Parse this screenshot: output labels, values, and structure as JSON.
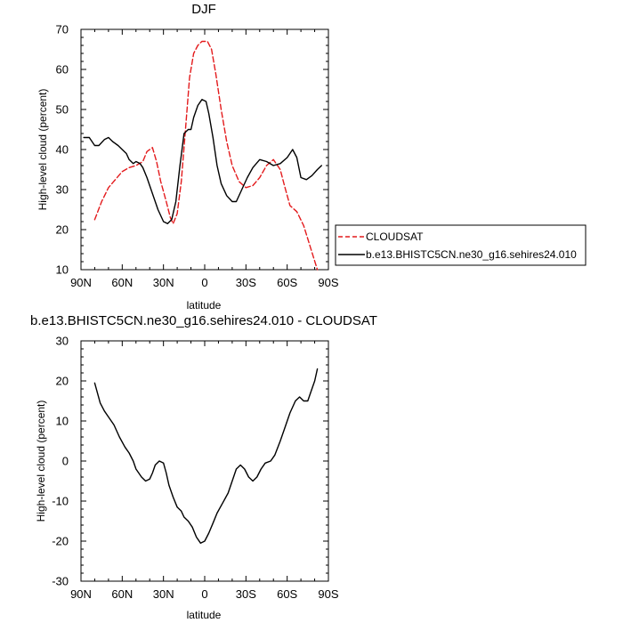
{
  "chart_data": [
    {
      "type": "line",
      "title": "DJF",
      "xlabel": "latitude",
      "ylabel": "High-level cloud (percent)",
      "xlim": [
        90,
        -90
      ],
      "ylim": [
        10,
        70
      ],
      "x_ticks": [
        90,
        60,
        30,
        0,
        -30,
        -60,
        -90
      ],
      "x_tick_labels": [
        "90N",
        "60N",
        "30N",
        "0",
        "30S",
        "60S",
        "90S"
      ],
      "y_ticks": [
        10,
        20,
        30,
        40,
        50,
        60,
        70
      ],
      "y_tick_labels": [
        "10",
        "20",
        "30",
        "40",
        "50",
        "60",
        "70"
      ],
      "legend_position": "right",
      "series": [
        {
          "name": "CLOUDSAT",
          "color": "#e31a1c",
          "dash": "dashed",
          "points": [
            [
              80,
              22.5
            ],
            [
              75,
              27
            ],
            [
              70,
              30.5
            ],
            [
              65,
              32.5
            ],
            [
              60,
              34.5
            ],
            [
              55,
              35.5
            ],
            [
              50,
              36
            ],
            [
              45,
              37
            ],
            [
              42,
              39.5
            ],
            [
              38,
              40.5
            ],
            [
              35,
              37
            ],
            [
              32,
              32
            ],
            [
              28,
              27
            ],
            [
              25,
              23
            ],
            [
              23,
              21.5
            ],
            [
              20,
              24
            ],
            [
              17,
              32
            ],
            [
              14,
              45
            ],
            [
              11,
              58
            ],
            [
              8,
              64
            ],
            [
              5,
              66
            ],
            [
              2,
              67
            ],
            [
              -2,
              67
            ],
            [
              -5,
              65
            ],
            [
              -8,
              59
            ],
            [
              -12,
              50
            ],
            [
              -16,
              42
            ],
            [
              -20,
              36
            ],
            [
              -25,
              32
            ],
            [
              -30,
              30.5
            ],
            [
              -35,
              31
            ],
            [
              -40,
              33
            ],
            [
              -45,
              36
            ],
            [
              -50,
              37.5
            ],
            [
              -55,
              35
            ],
            [
              -58,
              31
            ],
            [
              -62,
              26
            ],
            [
              -67,
              24.5
            ],
            [
              -72,
              21
            ],
            [
              -77,
              15.5
            ],
            [
              -82,
              10
            ]
          ]
        },
        {
          "name": "b.e13.BHISTC5CN.ne30_g16.sehires24.010",
          "color": "#000000",
          "dash": "solid",
          "points": [
            [
              88,
              43
            ],
            [
              84,
              43
            ],
            [
              80,
              41
            ],
            [
              77,
              41
            ],
            [
              73,
              42.5
            ],
            [
              70,
              43
            ],
            [
              67,
              42
            ],
            [
              63,
              41
            ],
            [
              60,
              40
            ],
            [
              57,
              39
            ],
            [
              55,
              37.5
            ],
            [
              52,
              36.5
            ],
            [
              50,
              37
            ],
            [
              47,
              36.5
            ],
            [
              45,
              35.5
            ],
            [
              42,
              33
            ],
            [
              38,
              29
            ],
            [
              34,
              25
            ],
            [
              30,
              22
            ],
            [
              27,
              21.5
            ],
            [
              24,
              22.5
            ],
            [
              21,
              27
            ],
            [
              18,
              36
            ],
            [
              15,
              44
            ],
            [
              12,
              45
            ],
            [
              10,
              45
            ],
            [
              8,
              48
            ],
            [
              5,
              51
            ],
            [
              2,
              52.5
            ],
            [
              -1,
              52
            ],
            [
              -3,
              49
            ],
            [
              -6,
              43
            ],
            [
              -9,
              36
            ],
            [
              -12,
              31.5
            ],
            [
              -16,
              28.5
            ],
            [
              -20,
              27
            ],
            [
              -23,
              27
            ],
            [
              -27,
              30
            ],
            [
              -31,
              33
            ],
            [
              -35,
              35.5
            ],
            [
              -40,
              37.5
            ],
            [
              -45,
              37
            ],
            [
              -50,
              36
            ],
            [
              -55,
              36.5
            ],
            [
              -60,
              38
            ],
            [
              -64,
              40
            ],
            [
              -67,
              38
            ],
            [
              -70,
              33
            ],
            [
              -74,
              32.5
            ],
            [
              -78,
              33.5
            ],
            [
              -82,
              35
            ],
            [
              -85,
              36
            ]
          ]
        }
      ]
    },
    {
      "type": "line",
      "title": "b.e13.BHISTC5CN.ne30_g16.sehires24.010 - CLOUDSAT",
      "xlabel": "latitude",
      "ylabel": "High-level cloud (percent)",
      "xlim": [
        90,
        -90
      ],
      "ylim": [
        -30,
        30
      ],
      "x_ticks": [
        90,
        60,
        30,
        0,
        -30,
        -60,
        -90
      ],
      "x_tick_labels": [
        "90N",
        "60N",
        "30N",
        "0",
        "30S",
        "60S",
        "90S"
      ],
      "y_ticks": [
        -30,
        -20,
        -10,
        0,
        10,
        20,
        30
      ],
      "y_tick_labels": [
        "-30",
        "-20",
        "-10",
        "0",
        "10",
        "20",
        "30"
      ],
      "series": [
        {
          "color": "#000000",
          "dash": "solid",
          "points": [
            [
              80,
              19.5
            ],
            [
              76,
              14.5
            ],
            [
              73,
              12.5
            ],
            [
              70,
              11
            ],
            [
              66,
              9
            ],
            [
              62,
              6
            ],
            [
              58,
              3.5
            ],
            [
              55,
              2
            ],
            [
              52,
              0
            ],
            [
              50,
              -2
            ],
            [
              48,
              -3
            ],
            [
              46,
              -4
            ],
            [
              43,
              -5
            ],
            [
              40,
              -4.5
            ],
            [
              38,
              -3
            ],
            [
              36,
              -1
            ],
            [
              33,
              0
            ],
            [
              30,
              -0.5
            ],
            [
              28,
              -3
            ],
            [
              26,
              -6
            ],
            [
              23,
              -9
            ],
            [
              20,
              -11.5
            ],
            [
              17,
              -12.5
            ],
            [
              15,
              -14
            ],
            [
              12,
              -15
            ],
            [
              9,
              -16.5
            ],
            [
              6,
              -19
            ],
            [
              3,
              -20.5
            ],
            [
              0,
              -20
            ],
            [
              -3,
              -18
            ],
            [
              -6,
              -15.5
            ],
            [
              -9,
              -13
            ],
            [
              -13,
              -10.5
            ],
            [
              -17,
              -8
            ],
            [
              -20,
              -5
            ],
            [
              -23,
              -2
            ],
            [
              -26,
              -1
            ],
            [
              -29,
              -2
            ],
            [
              -32,
              -4
            ],
            [
              -35,
              -5
            ],
            [
              -38,
              -4
            ],
            [
              -41,
              -2
            ],
            [
              -44,
              -0.5
            ],
            [
              -48,
              0
            ],
            [
              -51,
              1.5
            ],
            [
              -55,
              5
            ],
            [
              -58,
              8
            ],
            [
              -62,
              12
            ],
            [
              -66,
              15
            ],
            [
              -69,
              16
            ],
            [
              -72,
              15
            ],
            [
              -75,
              15
            ],
            [
              -77,
              17
            ],
            [
              -80,
              20
            ],
            [
              -82,
              23
            ]
          ]
        }
      ]
    }
  ]
}
